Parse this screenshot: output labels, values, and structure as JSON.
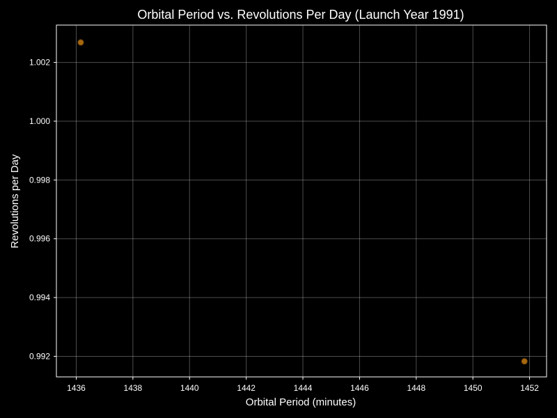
{
  "colors": {
    "background": "#000000",
    "axes": "#ffffff",
    "grid": "#ffffff",
    "marker_fill": "#c47a12",
    "marker_edge": "#7a4a08"
  },
  "chart_data": {
    "type": "scatter",
    "title": "Orbital Period vs. Revolutions Per Day (Launch Year 1991)",
    "xlabel": "Orbital Period (minutes)",
    "ylabel": "Revolutions per Day",
    "xlim": [
      1435.3,
      1452.6
    ],
    "ylim": [
      0.9913,
      1.00327
    ],
    "xticks": [
      1436,
      1438,
      1440,
      1442,
      1444,
      1446,
      1448,
      1450,
      1452
    ],
    "yticks": [
      0.992,
      0.994,
      0.996,
      0.998,
      1.0,
      1.002
    ],
    "ytick_labels": [
      "0.992",
      "0.994",
      "0.996",
      "0.998",
      "1.000",
      "1.002"
    ],
    "grid": true,
    "series": [
      {
        "points": [
          {
            "x": 1436.16,
            "y": 1.00268
          },
          {
            "x": 1451.82,
            "y": 0.99183
          }
        ]
      }
    ]
  }
}
